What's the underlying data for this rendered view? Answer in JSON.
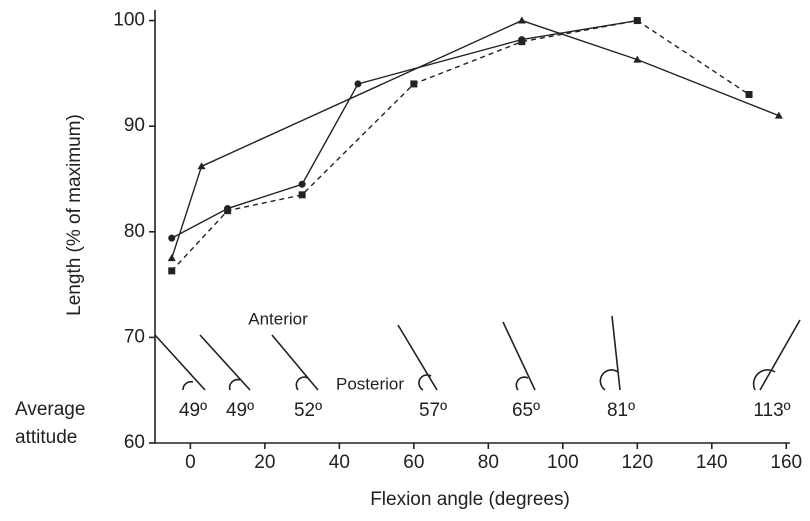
{
  "chart_data": {
    "type": "line",
    "y_label": "Length (% of maximum)",
    "x_label": "Flexion angle (degrees)",
    "xlim": [
      -9.5,
      161
    ],
    "xticks": [
      0,
      20,
      40,
      60,
      80,
      100,
      120,
      140,
      160
    ],
    "ylim": [
      60,
      101
    ],
    "yticks": [
      60,
      70,
      80,
      90,
      100
    ],
    "series": [
      {
        "color": "#222222",
        "marker": "triangle",
        "dashed": false,
        "x": [
          -5,
          3,
          89,
          120,
          158
        ],
        "values": [
          77.5,
          86.2,
          100,
          96.3,
          91
        ]
      },
      {
        "color": "#222222",
        "marker": "circle",
        "dashed": false,
        "x": [
          -5,
          10,
          30,
          45,
          89,
          120
        ],
        "values": [
          79.4,
          82.2,
          84.5,
          94,
          98.2,
          100
        ]
      },
      {
        "color": "#222222",
        "marker": "square",
        "dashed": true,
        "x": [
          -5,
          10,
          30,
          60,
          89,
          120,
          150
        ],
        "values": [
          76.3,
          82,
          83.5,
          94,
          98,
          100,
          93
        ]
      }
    ],
    "annotations": [
      "Anterior",
      "Posterior"
    ],
    "attitude_title": [
      "Average",
      "attitude"
    ],
    "attitude_labels": [
      "49º",
      "49º",
      "52º",
      "57º",
      "65º",
      "81º",
      "113º"
    ]
  }
}
